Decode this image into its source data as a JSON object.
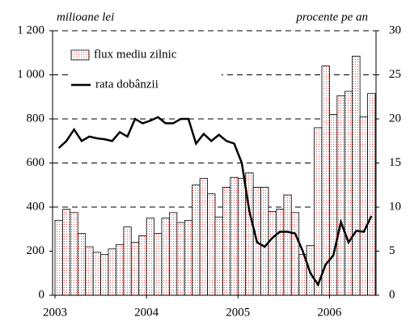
{
  "chart_data": {
    "type": "bar-line",
    "y_label": "milioane lei",
    "y2_label": "procente pe an",
    "categories": [
      null,
      null,
      null,
      null,
      null,
      null,
      null,
      null,
      null,
      null,
      null,
      null,
      null,
      null,
      null,
      null,
      null,
      null,
      null,
      null,
      null,
      null,
      null,
      null,
      null,
      null,
      null,
      null,
      null,
      null,
      null,
      null,
      null,
      null,
      null,
      null,
      null,
      null,
      null,
      null,
      null,
      null
    ],
    "xlim": [
      2003,
      2006.5
    ],
    "xticks": [
      2003,
      2004,
      2005,
      2006
    ],
    "ylim": [
      0,
      1200
    ],
    "yticks": [
      0,
      200,
      400,
      600,
      800,
      {
        "value": 1000,
        "label": "1 000"
      },
      {
        "value": 1200,
        "label": "1 200"
      }
    ],
    "y2lim": [
      0,
      30
    ],
    "y2ticks": [
      0,
      5,
      10,
      15,
      20,
      25,
      30
    ],
    "grid": true,
    "legend": "upper left",
    "series": [
      {
        "name": "flux mediu zilnic",
        "kind": "bar",
        "color": "#e05050",
        "values": [
          340,
          390,
          375,
          280,
          220,
          195,
          185,
          210,
          230,
          310,
          240,
          270,
          350,
          280,
          350,
          375,
          330,
          340,
          500,
          530,
          460,
          355,
          490,
          535,
          530,
          555,
          490,
          490,
          380,
          390,
          455,
          375,
          185,
          225,
          760,
          1040,
          820,
          905,
          925,
          1085,
          810,
          915
        ]
      },
      {
        "name": "rata dobânzii",
        "kind": "line",
        "axis": "y2",
        "color": "#000000",
        "values": [
          16.7,
          17.5,
          18.8,
          17.5,
          18,
          17.8,
          17.7,
          17.5,
          18.5,
          18,
          20,
          19.5,
          19.8,
          20.2,
          19.5,
          19.5,
          20,
          20,
          17.2,
          18.3,
          17.5,
          18.2,
          17.5,
          17.2,
          15,
          9.5,
          6,
          5.5,
          6.5,
          7.2,
          7.2,
          7,
          5,
          2.5,
          1.2,
          3.5,
          4.5,
          8.3,
          6,
          7.3,
          7.2,
          9
        ]
      }
    ]
  }
}
